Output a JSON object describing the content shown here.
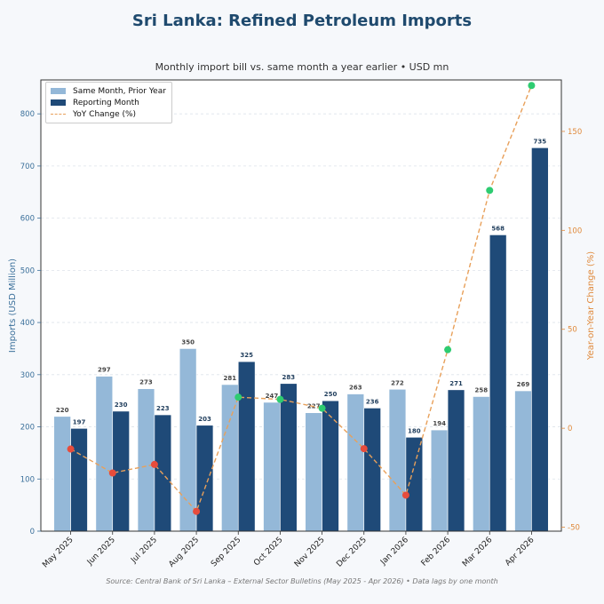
{
  "title": "Sri Lanka: Refined Petroleum Imports",
  "subtitle": "Monthly import bill vs. same month a year earlier  •  USD mn",
  "source": "Source: Central Bank of Sri Lanka – External Sector Bulletins (May 2025 - Apr 2026)  •  Data lags by one month",
  "colors": {
    "prior": "#94b8d8",
    "reporting": "#1f4a78",
    "yoy_line": "#e8a05a",
    "positive": "#2ecc71",
    "negative": "#e74c3c",
    "left_axis": "#3a6f9a",
    "right_axis": "#e08a3c"
  },
  "legend": {
    "prior": "Same Month, Prior Year",
    "reporting": "Reporting Month",
    "yoy": "YoY Change (%)"
  },
  "chart_data": {
    "type": "bar",
    "categories": [
      "May 2025",
      "Jun 2025",
      "Jul 2025",
      "Aug 2025",
      "Sep 2025",
      "Oct 2025",
      "Nov 2025",
      "Dec 2025",
      "Jan 2026",
      "Feb 2026",
      "Mar 2026",
      "Apr 2026"
    ],
    "series": [
      {
        "name": "Same Month, Prior Year",
        "values": [
          220,
          297,
          273,
          350,
          281,
          247,
          227,
          263,
          272,
          194,
          258,
          269
        ]
      },
      {
        "name": "Reporting Month",
        "values": [
          197,
          230,
          223,
          203,
          325,
          283,
          250,
          236,
          180,
          271,
          568,
          735
        ]
      },
      {
        "name": "YoY Change (%)",
        "type": "line",
        "axis": "right",
        "values": [
          -10.5,
          -22.6,
          -18.3,
          -42.0,
          15.7,
          14.6,
          10.1,
          -10.3,
          -33.8,
          39.7,
          120.2,
          173.2
        ]
      }
    ],
    "ylabel": "Imports (USD Million)",
    "y2label": "Year-on-Year Change (%)",
    "ylim": [
      0,
      865
    ],
    "y2lim": [
      -52,
      176
    ],
    "yticks": [
      0,
      100,
      200,
      300,
      400,
      500,
      600,
      700,
      800
    ],
    "y2ticks": [
      -50,
      0,
      50,
      100,
      150
    ],
    "grid": true,
    "legend_position": "upper-left"
  }
}
